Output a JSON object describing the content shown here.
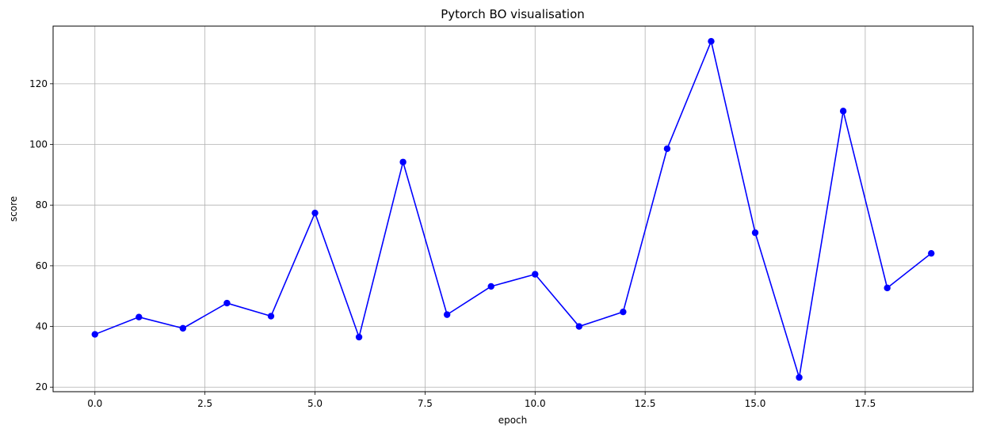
{
  "chart_data": {
    "type": "line",
    "title": "Pytorch BO visualisation",
    "xlabel": "epoch",
    "ylabel": "score",
    "xlim": [
      -0.95,
      19.95
    ],
    "ylim": [
      18.5,
      139.0
    ],
    "xticks": [
      0.0,
      2.5,
      5.0,
      7.5,
      10.0,
      12.5,
      15.0,
      17.5
    ],
    "xtick_labels": [
      "0.0",
      "2.5",
      "5.0",
      "7.5",
      "10.0",
      "12.5",
      "15.0",
      "17.5"
    ],
    "yticks": [
      20,
      40,
      60,
      80,
      100,
      120
    ],
    "ytick_labels": [
      "20",
      "40",
      "60",
      "80",
      "100",
      "120"
    ],
    "grid": true,
    "series": [
      {
        "color": "#0000ff",
        "marker": "circle",
        "x": [
          0,
          1,
          2,
          3,
          4,
          5,
          6,
          7,
          8,
          9,
          10,
          11,
          12,
          13,
          14,
          15,
          16,
          17,
          18,
          19
        ],
        "y": [
          37.4,
          43.1,
          39.4,
          47.7,
          43.4,
          77.4,
          36.5,
          94.2,
          43.9,
          53.2,
          57.2,
          40.0,
          44.8,
          98.6,
          134.0,
          70.9,
          23.2,
          111.0,
          52.7,
          64.1
        ]
      }
    ]
  }
}
